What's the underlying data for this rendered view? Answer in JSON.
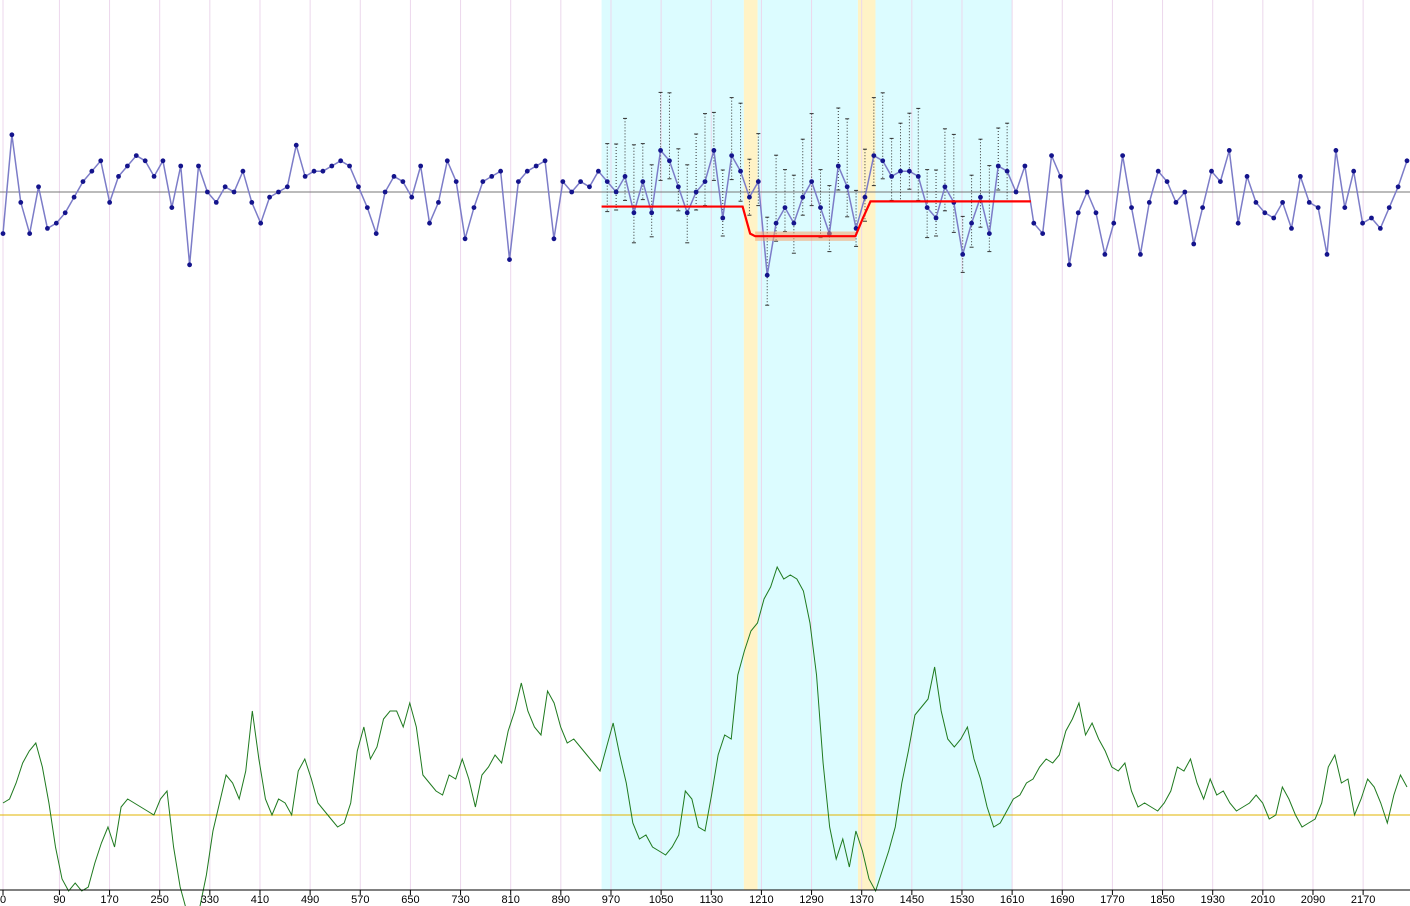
{
  "chart_data": {
    "type": "line",
    "xlim": [
      0,
      2240
    ],
    "x_ticks": [
      0,
      90,
      170,
      250,
      330,
      410,
      490,
      570,
      650,
      730,
      810,
      890,
      970,
      1050,
      1130,
      1210,
      1290,
      1370,
      1450,
      1530,
      1610,
      1690,
      1770,
      1850,
      1930,
      2010,
      2090,
      2170
    ],
    "shaded_regions": [
      {
        "kind": "cyan",
        "start": 955,
        "end": 1182
      },
      {
        "kind": "yellow",
        "start": 1182,
        "end": 1204
      },
      {
        "kind": "cyan",
        "start": 1204,
        "end": 1364
      },
      {
        "kind": "yellow",
        "start": 1364,
        "end": 1392
      },
      {
        "kind": "cyan",
        "start": 1392,
        "end": 1610
      }
    ],
    "upper_panel": {
      "mean_level": 0.0,
      "series": [
        {
          "role": "observations",
          "color": "#3a3aa0",
          "values": [
            -0.8,
            1.1,
            -0.2,
            -0.8,
            0.1,
            -0.7,
            -0.6,
            -0.4,
            -0.1,
            0.2,
            0.4,
            0.6,
            -0.2,
            0.3,
            0.5,
            0.7,
            0.6,
            0.3,
            0.6,
            -0.3,
            0.5,
            -1.4,
            0.5,
            0.0,
            -0.2,
            0.1,
            0.0,
            0.4,
            -0.2,
            -0.6,
            -0.1,
            0.0,
            0.1,
            0.9,
            0.3,
            0.4,
            0.4,
            0.5,
            0.6,
            0.5,
            0.1,
            -0.3,
            -0.8,
            0.0,
            0.3,
            0.2,
            -0.1,
            0.5,
            -0.6,
            -0.2,
            0.6,
            0.2,
            -0.9,
            -0.3,
            0.2,
            0.3,
            0.4,
            -1.3,
            0.2,
            0.4,
            0.5,
            0.6,
            -0.9,
            0.2,
            0.0,
            0.2,
            0.1,
            0.4,
            0.2,
            0.0,
            0.3,
            -0.4,
            0.2,
            -0.4,
            0.8,
            0.6,
            0.1,
            -0.4,
            0.0,
            0.2,
            0.8,
            -0.5,
            0.7,
            0.4,
            -0.1,
            0.2,
            -1.6,
            -0.6,
            -0.3,
            -0.6,
            -0.1,
            0.2,
            -0.3,
            -0.8,
            0.5,
            0.1,
            -0.7,
            -0.1,
            0.7,
            0.6,
            0.3,
            0.4,
            0.4,
            0.3,
            -0.3,
            -0.5,
            0.1,
            -0.2,
            -1.2,
            -0.6,
            -0.1,
            -0.8,
            0.5,
            0.4,
            0.0,
            0.5,
            -0.6,
            -0.8,
            0.7,
            0.3,
            -1.4,
            -0.4,
            0.0,
            -0.4,
            -1.2,
            -0.6,
            0.7,
            -0.3,
            -1.2,
            -0.2,
            0.4,
            0.2,
            -0.2,
            0.0,
            -1.0,
            -0.3,
            0.4,
            0.2,
            0.8,
            -0.6,
            0.3,
            -0.2,
            -0.4,
            -0.5,
            -0.2,
            -0.7,
            0.3,
            -0.2,
            -0.3,
            -1.2,
            0.8,
            -0.3,
            0.4,
            -0.6,
            -0.5,
            -0.7,
            -0.3,
            0.1,
            0.6
          ],
          "highlight_range": [
            955,
            1610
          ]
        },
        {
          "role": "fitted-mean",
          "color": "#ff0000"
        }
      ]
    },
    "lower_panel": {
      "reference_level": 0.0,
      "series": [
        {
          "role": "statistic",
          "color": "#1f7a1f",
          "values": [
            0.3,
            0.4,
            0.8,
            1.3,
            1.6,
            1.8,
            1.2,
            0.3,
            -0.8,
            -1.6,
            -1.9,
            -1.7,
            -1.9,
            -1.8,
            -1.2,
            -0.7,
            -0.3,
            -0.8,
            0.2,
            0.4,
            0.3,
            0.2,
            0.1,
            0.0,
            0.4,
            0.6,
            -0.8,
            -1.8,
            -2.4,
            -2.6,
            -2.3,
            -1.5,
            -0.4,
            0.3,
            1.0,
            0.8,
            0.4,
            1.1,
            2.6,
            1.4,
            0.4,
            0.0,
            0.4,
            0.3,
            0.0,
            1.1,
            1.4,
            0.9,
            0.3,
            0.1,
            -0.1,
            -0.3,
            -0.2,
            0.3,
            1.6,
            2.2,
            1.4,
            1.7,
            2.4,
            2.6,
            2.6,
            2.2,
            2.8,
            2.2,
            1.0,
            0.8,
            0.6,
            0.5,
            1.0,
            0.9,
            1.4,
            0.9,
            0.2,
            1.0,
            1.2,
            1.5,
            1.3,
            2.1,
            2.6,
            3.3,
            2.6,
            2.2,
            2.0,
            3.1,
            2.8,
            2.2,
            1.8,
            1.9,
            1.7,
            1.5,
            1.3,
            1.1,
            1.7,
            2.3,
            1.5,
            0.8,
            -0.2,
            -0.6,
            -0.5,
            -0.8,
            -0.9,
            -1.0,
            -0.8,
            -0.5,
            0.6,
            0.4,
            -0.3,
            -0.4,
            0.5,
            1.5,
            2.0,
            1.9,
            3.5,
            4.1,
            4.6,
            4.8,
            5.4,
            5.7,
            6.2,
            5.9,
            6.0,
            5.9,
            5.6,
            4.8,
            3.5,
            1.3,
            -0.3,
            -1.1,
            -0.6,
            -1.3,
            -0.4,
            -0.9,
            -1.6,
            -1.9,
            -1.4,
            -0.9,
            -0.3,
            0.8,
            1.6,
            2.5,
            2.7,
            2.9,
            3.7,
            2.6,
            1.9,
            1.7,
            1.9,
            2.2,
            1.4,
            0.9,
            0.2,
            -0.3,
            -0.2,
            0.1,
            0.4,
            0.5,
            0.8,
            0.9,
            1.2,
            1.4,
            1.3,
            1.5,
            2.1,
            2.4,
            2.8,
            2.0,
            2.3,
            1.9,
            1.6,
            1.2,
            1.1,
            1.3,
            0.6,
            0.2,
            0.3,
            0.2,
            0.1,
            0.3,
            0.6,
            1.2,
            1.1,
            1.4,
            0.8,
            0.4,
            0.9,
            0.5,
            0.6,
            0.3,
            0.1,
            0.2,
            0.3,
            0.5,
            0.3,
            -0.1,
            0.0,
            0.7,
            0.4,
            0.0,
            -0.3,
            -0.2,
            -0.1,
            0.3,
            1.2,
            1.5,
            0.8,
            0.9,
            0.0,
            0.4,
            0.9,
            0.7,
            0.3,
            -0.2,
            0.5,
            1.0,
            0.7
          ]
        }
      ]
    }
  }
}
